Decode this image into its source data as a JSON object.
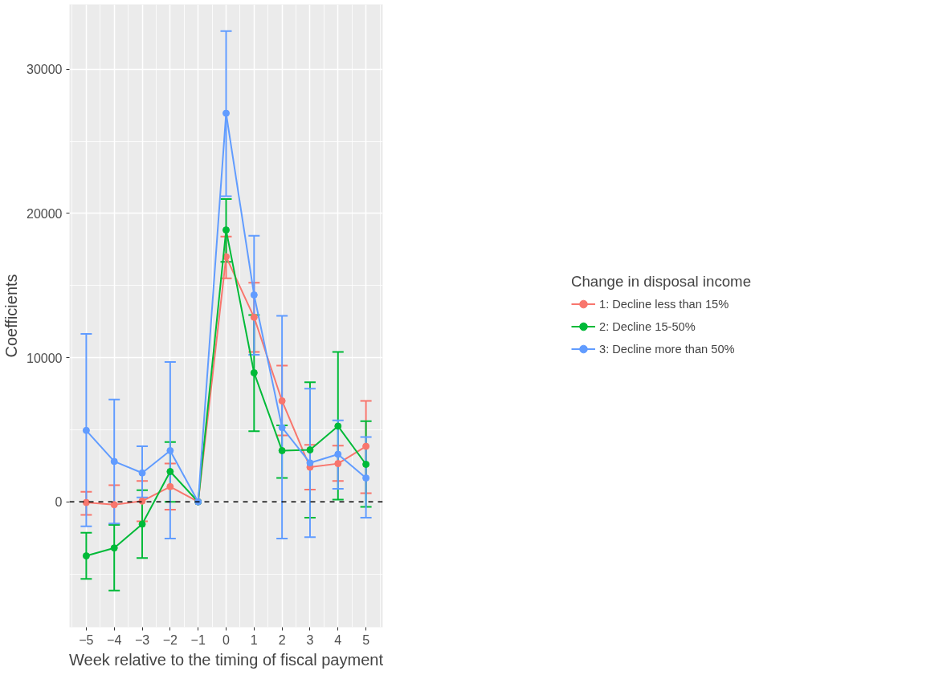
{
  "chart_data": {
    "type": "line",
    "xlabel": "Week relative to the timing of fiscal payment",
    "ylabel": "Coefficients",
    "legend_title": "Change in disposal income",
    "x": [
      -5,
      -4,
      -3,
      -2,
      -1,
      0,
      1,
      2,
      3,
      4,
      5
    ],
    "series": [
      {
        "name": "1: Decline less than 15%",
        "color": "#f8766d",
        "values": [
          -50,
          -200,
          50,
          1050,
          0,
          17000,
          12800,
          7000,
          2400,
          2650,
          3850
        ],
        "errors": [
          [
            -900,
            700
          ],
          [
            -1550,
            1150
          ],
          [
            -1350,
            1450
          ],
          [
            -550,
            2650
          ],
          null,
          [
            15500,
            18400
          ],
          [
            10400,
            15200
          ],
          [
            4600,
            9450
          ],
          [
            850,
            3950
          ],
          [
            1450,
            3900
          ],
          [
            600,
            7000
          ]
        ]
      },
      {
        "name": "2: Decline 15-50%",
        "color": "#00ba38",
        "values": [
          -3750,
          -3200,
          -1550,
          2100,
          0,
          18850,
          8950,
          3550,
          3600,
          5250,
          2600
        ],
        "errors": [
          [
            -5350,
            -2150
          ],
          [
            -6150,
            -1600
          ],
          [
            -3900,
            800
          ],
          [
            0,
            4150
          ],
          null,
          [
            16650,
            21000
          ],
          [
            4900,
            12950
          ],
          [
            1650,
            5300
          ],
          [
            -1100,
            8300
          ],
          [
            150,
            10400
          ],
          [
            -350,
            5600
          ]
        ]
      },
      {
        "name": "3: Decline more than 50%",
        "color": "#619cff",
        "values": [
          4950,
          2800,
          2000,
          3550,
          0,
          26950,
          14350,
          5150,
          2700,
          3300,
          1650
        ],
        "errors": [
          [
            -1700,
            11650
          ],
          [
            -1500,
            7100
          ],
          [
            300,
            3850
          ],
          [
            -2550,
            9700
          ],
          null,
          [
            21200,
            32650
          ],
          [
            10200,
            18450
          ],
          [
            -2550,
            12900
          ],
          [
            -2450,
            7850
          ],
          [
            900,
            5650
          ],
          [
            -1100,
            4500
          ]
        ]
      }
    ],
    "xlim": [
      -5.6,
      5.6
    ],
    "ylim": [
      -8700,
      34500
    ],
    "xticks": [
      -5,
      -4,
      -3,
      -2,
      -1,
      0,
      1,
      2,
      3,
      4,
      5
    ],
    "yticks": [
      0,
      10000,
      20000,
      30000
    ],
    "ref_lines": [
      {
        "axis": "y",
        "value": 0,
        "color": "#000000",
        "line_style": "dashed"
      }
    ],
    "grid": true,
    "legend": "right",
    "marker": "circle",
    "line_style": "solid"
  }
}
